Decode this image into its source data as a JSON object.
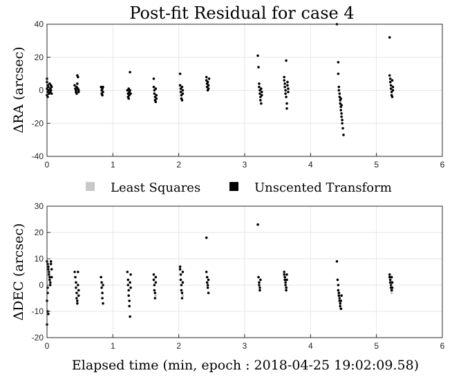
{
  "title": "Post-fit Residual for case 4",
  "legend": {
    "items": [
      {
        "label": "Least Squares",
        "color": "#c8c8c8"
      },
      {
        "label": "Unscented Transform",
        "color": "#000000"
      }
    ]
  },
  "chart_data": [
    {
      "type": "scatter",
      "title": "Post-fit Residual for case 4",
      "ylabel": "ΔRA (arcsec)",
      "xlabel": "",
      "xlim": [
        0,
        6
      ],
      "ylim": [
        -40,
        40
      ],
      "xticks": [
        0,
        1,
        2,
        3,
        4,
        5,
        6
      ],
      "yticks": [
        -40,
        -20,
        0,
        20,
        40
      ],
      "grid": true,
      "series": [
        {
          "name": "Unscented Transform",
          "color": "#000000",
          "points": [
            [
              0.0,
              7
            ],
            [
              0.0,
              5
            ],
            [
              0.01,
              3
            ],
            [
              0.0,
              1
            ],
            [
              0.01,
              -1
            ],
            [
              0.0,
              -3
            ],
            [
              0.01,
              -4
            ],
            [
              0.02,
              2
            ],
            [
              0.02,
              0
            ],
            [
              0.03,
              -2
            ],
            [
              0.04,
              4
            ],
            [
              0.05,
              1
            ],
            [
              0.05,
              -1
            ],
            [
              0.06,
              3
            ],
            [
              0.06,
              0
            ],
            [
              0.07,
              2
            ],
            [
              0.07,
              -2
            ],
            [
              0.42,
              3
            ],
            [
              0.43,
              1
            ],
            [
              0.44,
              0
            ],
            [
              0.44,
              -1
            ],
            [
              0.45,
              2
            ],
            [
              0.45,
              -2
            ],
            [
              0.46,
              4
            ],
            [
              0.46,
              9
            ],
            [
              0.47,
              8
            ],
            [
              0.47,
              1
            ],
            [
              0.48,
              0
            ],
            [
              0.48,
              -1
            ],
            [
              0.82,
              2
            ],
            [
              0.83,
              0
            ],
            [
              0.83,
              -2
            ],
            [
              0.84,
              -3
            ],
            [
              0.84,
              1
            ],
            [
              0.85,
              -1
            ],
            [
              0.85,
              2
            ],
            [
              1.22,
              0
            ],
            [
              1.23,
              -2
            ],
            [
              1.23,
              -4
            ],
            [
              1.24,
              -5
            ],
            [
              1.24,
              1
            ],
            [
              1.25,
              -1
            ],
            [
              1.25,
              -3
            ],
            [
              1.26,
              11
            ],
            [
              1.26,
              0
            ],
            [
              1.27,
              -2
            ],
            [
              1.62,
              7
            ],
            [
              1.62,
              2
            ],
            [
              1.63,
              0
            ],
            [
              1.63,
              -2
            ],
            [
              1.64,
              -4
            ],
            [
              1.64,
              -6
            ],
            [
              1.65,
              -7
            ],
            [
              1.65,
              1
            ],
            [
              1.66,
              -3
            ],
            [
              1.66,
              -5
            ],
            [
              2.02,
              10
            ],
            [
              2.02,
              3
            ],
            [
              2.03,
              1
            ],
            [
              2.03,
              -1
            ],
            [
              2.04,
              -3
            ],
            [
              2.04,
              -5
            ],
            [
              2.05,
              -6
            ],
            [
              2.05,
              2
            ],
            [
              2.06,
              0
            ],
            [
              2.06,
              -2
            ],
            [
              2.42,
              8
            ],
            [
              2.42,
              6
            ],
            [
              2.43,
              4
            ],
            [
              2.43,
              2
            ],
            [
              2.44,
              0
            ],
            [
              2.44,
              5
            ],
            [
              2.45,
              3
            ],
            [
              2.45,
              1
            ],
            [
              2.46,
              7
            ],
            [
              3.2,
              21
            ],
            [
              3.21,
              14
            ],
            [
              3.22,
              4
            ],
            [
              3.22,
              2
            ],
            [
              3.23,
              0
            ],
            [
              3.23,
              -2
            ],
            [
              3.24,
              -4
            ],
            [
              3.24,
              -6
            ],
            [
              3.25,
              -8
            ],
            [
              3.25,
              1
            ],
            [
              3.26,
              -1
            ],
            [
              3.26,
              -3
            ],
            [
              3.6,
              8
            ],
            [
              3.6,
              6
            ],
            [
              3.61,
              4
            ],
            [
              3.61,
              2
            ],
            [
              3.62,
              0
            ],
            [
              3.62,
              -2
            ],
            [
              3.63,
              -4
            ],
            [
              3.63,
              18
            ],
            [
              3.64,
              -8
            ],
            [
              3.64,
              -11
            ],
            [
              3.65,
              5
            ],
            [
              3.65,
              3
            ],
            [
              3.66,
              1
            ],
            [
              3.66,
              -1
            ],
            [
              4.4,
              40
            ],
            [
              4.42,
              17
            ],
            [
              4.42,
              10
            ],
            [
              4.43,
              2
            ],
            [
              4.43,
              0
            ],
            [
              4.44,
              -2
            ],
            [
              4.44,
              -4
            ],
            [
              4.45,
              -6
            ],
            [
              4.45,
              -8
            ],
            [
              4.46,
              -10
            ],
            [
              4.46,
              -12
            ],
            [
              4.47,
              -14
            ],
            [
              4.47,
              -16
            ],
            [
              4.48,
              -18
            ],
            [
              4.48,
              -20
            ],
            [
              4.49,
              -23
            ],
            [
              4.5,
              -27
            ],
            [
              4.46,
              -5
            ],
            [
              4.47,
              -9
            ],
            [
              5.2,
              32
            ],
            [
              5.2,
              9
            ],
            [
              5.21,
              7
            ],
            [
              5.21,
              5
            ],
            [
              5.22,
              3
            ],
            [
              5.22,
              1
            ],
            [
              5.23,
              -1
            ],
            [
              5.23,
              -3
            ],
            [
              5.24,
              -4
            ],
            [
              5.24,
              6
            ],
            [
              5.25,
              2
            ],
            [
              5.25,
              0
            ]
          ]
        }
      ]
    },
    {
      "type": "scatter",
      "title": "",
      "ylabel": "ΔDEC (arcsec)",
      "xlabel": "Elapsed time (min, epoch : 2018-04-25 19:02:09.58)",
      "xlim": [
        0,
        6
      ],
      "ylim": [
        -20,
        30
      ],
      "xticks": [
        0,
        1,
        2,
        3,
        4,
        5,
        6
      ],
      "yticks": [
        -20,
        -10,
        0,
        10,
        20,
        30
      ],
      "grid": true,
      "series": [
        {
          "name": "Unscented Transform",
          "color": "#000000",
          "points": [
            [
              0.0,
              9
            ],
            [
              0.01,
              8
            ],
            [
              0.02,
              7
            ],
            [
              0.02,
              6
            ],
            [
              0.03,
              5
            ],
            [
              0.03,
              4
            ],
            [
              0.04,
              3
            ],
            [
              0.04,
              2
            ],
            [
              0.05,
              1
            ],
            [
              0.05,
              0
            ],
            [
              0.06,
              8
            ],
            [
              0.06,
              9
            ],
            [
              0.07,
              6
            ],
            [
              0.07,
              3
            ],
            [
              0.01,
              -1
            ],
            [
              0.01,
              -3
            ],
            [
              0.0,
              -6
            ],
            [
              0.01,
              -10
            ],
            [
              0.0,
              -15
            ],
            [
              0.02,
              -11
            ],
            [
              0.42,
              5
            ],
            [
              0.43,
              3
            ],
            [
              0.44,
              1
            ],
            [
              0.44,
              -1
            ],
            [
              0.45,
              -3
            ],
            [
              0.45,
              -5
            ],
            [
              0.46,
              -7
            ],
            [
              0.46,
              -6
            ],
            [
              0.47,
              5
            ],
            [
              0.47,
              0
            ],
            [
              0.48,
              -2
            ],
            [
              0.48,
              -4
            ],
            [
              0.82,
              3
            ],
            [
              0.83,
              1
            ],
            [
              0.83,
              -1
            ],
            [
              0.84,
              -3
            ],
            [
              0.84,
              -5
            ],
            [
              0.85,
              -7
            ],
            [
              0.85,
              0
            ],
            [
              1.22,
              5
            ],
            [
              1.23,
              2
            ],
            [
              1.23,
              0
            ],
            [
              1.24,
              -2
            ],
            [
              1.24,
              -4
            ],
            [
              1.25,
              -6
            ],
            [
              1.25,
              -8
            ],
            [
              1.26,
              -12
            ],
            [
              1.26,
              1
            ],
            [
              1.27,
              -1
            ],
            [
              1.27,
              4
            ],
            [
              1.62,
              4
            ],
            [
              1.62,
              2
            ],
            [
              1.63,
              0
            ],
            [
              1.63,
              -2
            ],
            [
              1.64,
              -3
            ],
            [
              1.64,
              -5
            ],
            [
              1.65,
              3
            ],
            [
              1.65,
              1
            ],
            [
              2.02,
              7
            ],
            [
              2.02,
              6
            ],
            [
              2.03,
              4
            ],
            [
              2.03,
              2
            ],
            [
              2.04,
              0
            ],
            [
              2.04,
              -2
            ],
            [
              2.05,
              -3
            ],
            [
              2.05,
              -5
            ],
            [
              2.06,
              5
            ],
            [
              2.06,
              1
            ],
            [
              2.42,
              18
            ],
            [
              2.42,
              5
            ],
            [
              2.43,
              3
            ],
            [
              2.43,
              1
            ],
            [
              2.44,
              0
            ],
            [
              2.44,
              -1
            ],
            [
              2.45,
              -3
            ],
            [
              2.45,
              2
            ],
            [
              3.2,
              23
            ],
            [
              3.21,
              3
            ],
            [
              3.22,
              1
            ],
            [
              3.22,
              0
            ],
            [
              3.23,
              -1
            ],
            [
              3.23,
              -2
            ],
            [
              3.24,
              2
            ],
            [
              3.6,
              5
            ],
            [
              3.6,
              4
            ],
            [
              3.61,
              3
            ],
            [
              3.61,
              2
            ],
            [
              3.62,
              1
            ],
            [
              3.62,
              0
            ],
            [
              3.63,
              -1
            ],
            [
              3.63,
              -2
            ],
            [
              3.64,
              4
            ],
            [
              3.64,
              2
            ],
            [
              4.4,
              9
            ],
            [
              4.41,
              2
            ],
            [
              4.42,
              0
            ],
            [
              4.42,
              -2
            ],
            [
              4.43,
              -3
            ],
            [
              4.43,
              -4
            ],
            [
              4.44,
              -5
            ],
            [
              4.44,
              -6
            ],
            [
              4.45,
              -7
            ],
            [
              4.45,
              -8
            ],
            [
              4.46,
              -9
            ],
            [
              4.46,
              -6
            ],
            [
              4.47,
              -4
            ],
            [
              5.2,
              4
            ],
            [
              5.2,
              3
            ],
            [
              5.21,
              2
            ],
            [
              5.21,
              1
            ],
            [
              5.22,
              0
            ],
            [
              5.22,
              -1
            ],
            [
              5.23,
              -2
            ],
            [
              5.23,
              3
            ],
            [
              5.24,
              1
            ],
            [
              5.24,
              -1
            ]
          ]
        },
        {
          "name": "Least Squares",
          "color": "#c8c8c8",
          "points": [
            [
              5.23,
              -3
            ],
            [
              5.24,
              -2
            ],
            [
              4.47,
              -9
            ],
            [
              3.64,
              -1
            ],
            [
              1.65,
              -4
            ],
            [
              2.06,
              -4
            ]
          ]
        }
      ]
    }
  ]
}
